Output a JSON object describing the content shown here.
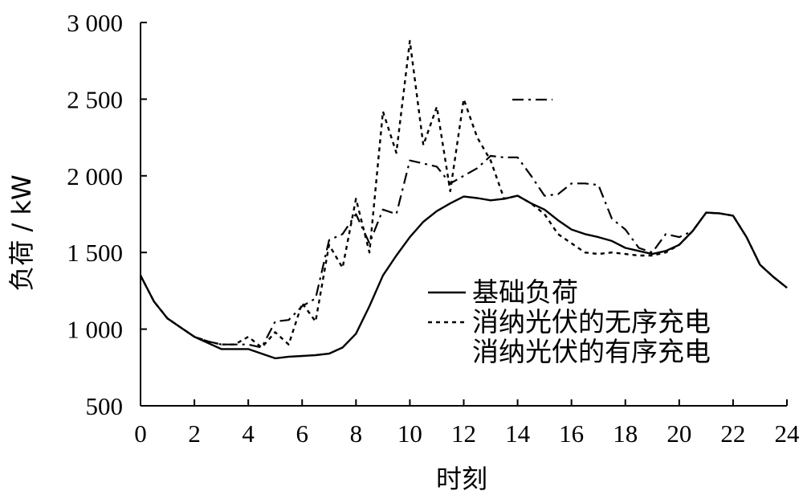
{
  "chart_data": {
    "type": "line",
    "title": "",
    "xlabel": "时刻",
    "ylabel": "负荷 / kW",
    "xlim": [
      0,
      24
    ],
    "ylim": [
      500,
      3000
    ],
    "x_ticks": [
      0,
      2,
      4,
      6,
      8,
      10,
      12,
      14,
      16,
      18,
      20,
      22,
      24
    ],
    "x_tick_labels": [
      "0",
      "2",
      "4",
      "6",
      "8",
      "10",
      "12",
      "14",
      "16",
      "18",
      "20",
      "22",
      "24"
    ],
    "y_ticks": [
      500,
      1000,
      1500,
      2000,
      2500,
      3000
    ],
    "y_tick_labels": [
      "500",
      "1 000",
      "1 500",
      "2 000",
      "2 500",
      "3 000"
    ],
    "grid": false,
    "legend_position": "right",
    "series": [
      {
        "name": "基础负荷",
        "line_style": "solid",
        "color": "#000000",
        "x": [
          0,
          0.5,
          1,
          1.5,
          2,
          2.5,
          3,
          3.5,
          4,
          4.5,
          5,
          5.5,
          6,
          6.5,
          7,
          7.5,
          8,
          8.5,
          9,
          9.5,
          10,
          10.5,
          11,
          11.5,
          12,
          12.5,
          13,
          13.5,
          14,
          14.5,
          15,
          15.5,
          16,
          16.5,
          17,
          17.5,
          18,
          18.5,
          19,
          19.5,
          20,
          20.5,
          21,
          21.5,
          22,
          22.5,
          23,
          23.5,
          24
        ],
        "values": [
          1350,
          1180,
          1070,
          1010,
          950,
          910,
          870,
          870,
          870,
          840,
          810,
          820,
          825,
          830,
          840,
          880,
          970,
          1150,
          1350,
          1480,
          1600,
          1700,
          1770,
          1820,
          1865,
          1855,
          1840,
          1850,
          1870,
          1820,
          1780,
          1710,
          1650,
          1620,
          1600,
          1575,
          1530,
          1510,
          1490,
          1510,
          1550,
          1640,
          1760,
          1755,
          1740,
          1600,
          1420,
          1340,
          1270
        ]
      },
      {
        "name": "消纳光伏的无序充电",
        "line_style": "dashed",
        "color": "#000000",
        "x": [
          0,
          0.5,
          1,
          1.5,
          2,
          2.5,
          3,
          3.5,
          4,
          4.5,
          5,
          5.5,
          6,
          6.5,
          7,
          7.5,
          8,
          8.5,
          9,
          9.5,
          10,
          10.5,
          11,
          11.5,
          12,
          12.5,
          13,
          13.5,
          14,
          14.5,
          15,
          15.5,
          16,
          16.5,
          17,
          17.5,
          18,
          18.5,
          19,
          19.5,
          20,
          20.5,
          21,
          21.5,
          22,
          22.5,
          23,
          23.5,
          24
        ],
        "values": [
          1350,
          1180,
          1070,
          1010,
          950,
          920,
          900,
          900,
          950,
          880,
          980,
          900,
          1170,
          1050,
          1550,
          1400,
          1850,
          1500,
          2420,
          2150,
          2880,
          2200,
          2450,
          1900,
          2500,
          2250,
          2100,
          1850,
          1870,
          1820,
          1750,
          1620,
          1560,
          1500,
          1490,
          1500,
          1490,
          1480,
          1480,
          1500,
          1550,
          1640,
          1760,
          1755,
          1740,
          1600,
          1420,
          1340,
          1270
        ]
      },
      {
        "name": "消纳光伏的有序充电",
        "line_style": "dash-dot",
        "color": "#000000",
        "x": [
          0,
          0.5,
          1,
          1.5,
          2,
          2.5,
          3,
          3.5,
          4,
          4.5,
          5,
          5.5,
          6,
          6.5,
          7,
          7.5,
          8,
          8.5,
          9,
          9.5,
          10,
          10.5,
          11,
          11.5,
          12,
          12.5,
          13,
          13.5,
          14,
          14.5,
          15,
          15.5,
          16,
          16.5,
          17,
          17.5,
          18,
          18.5,
          19,
          19.5,
          20,
          20.5,
          21,
          21.5,
          22,
          22.5,
          23,
          23.5,
          24
        ],
        "values": [
          1350,
          1180,
          1070,
          1010,
          950,
          920,
          900,
          900,
          900,
          880,
          1050,
          1060,
          1150,
          1200,
          1580,
          1620,
          1750,
          1560,
          1780,
          1750,
          2100,
          2080,
          2060,
          1950,
          2000,
          2050,
          2130,
          2120,
          2120,
          2000,
          1870,
          1880,
          1950,
          1950,
          1940,
          1720,
          1650,
          1530,
          1500,
          1620,
          1600,
          1640,
          1760,
          1755,
          1740,
          1600,
          1420,
          1340,
          1270
        ]
      }
    ]
  }
}
